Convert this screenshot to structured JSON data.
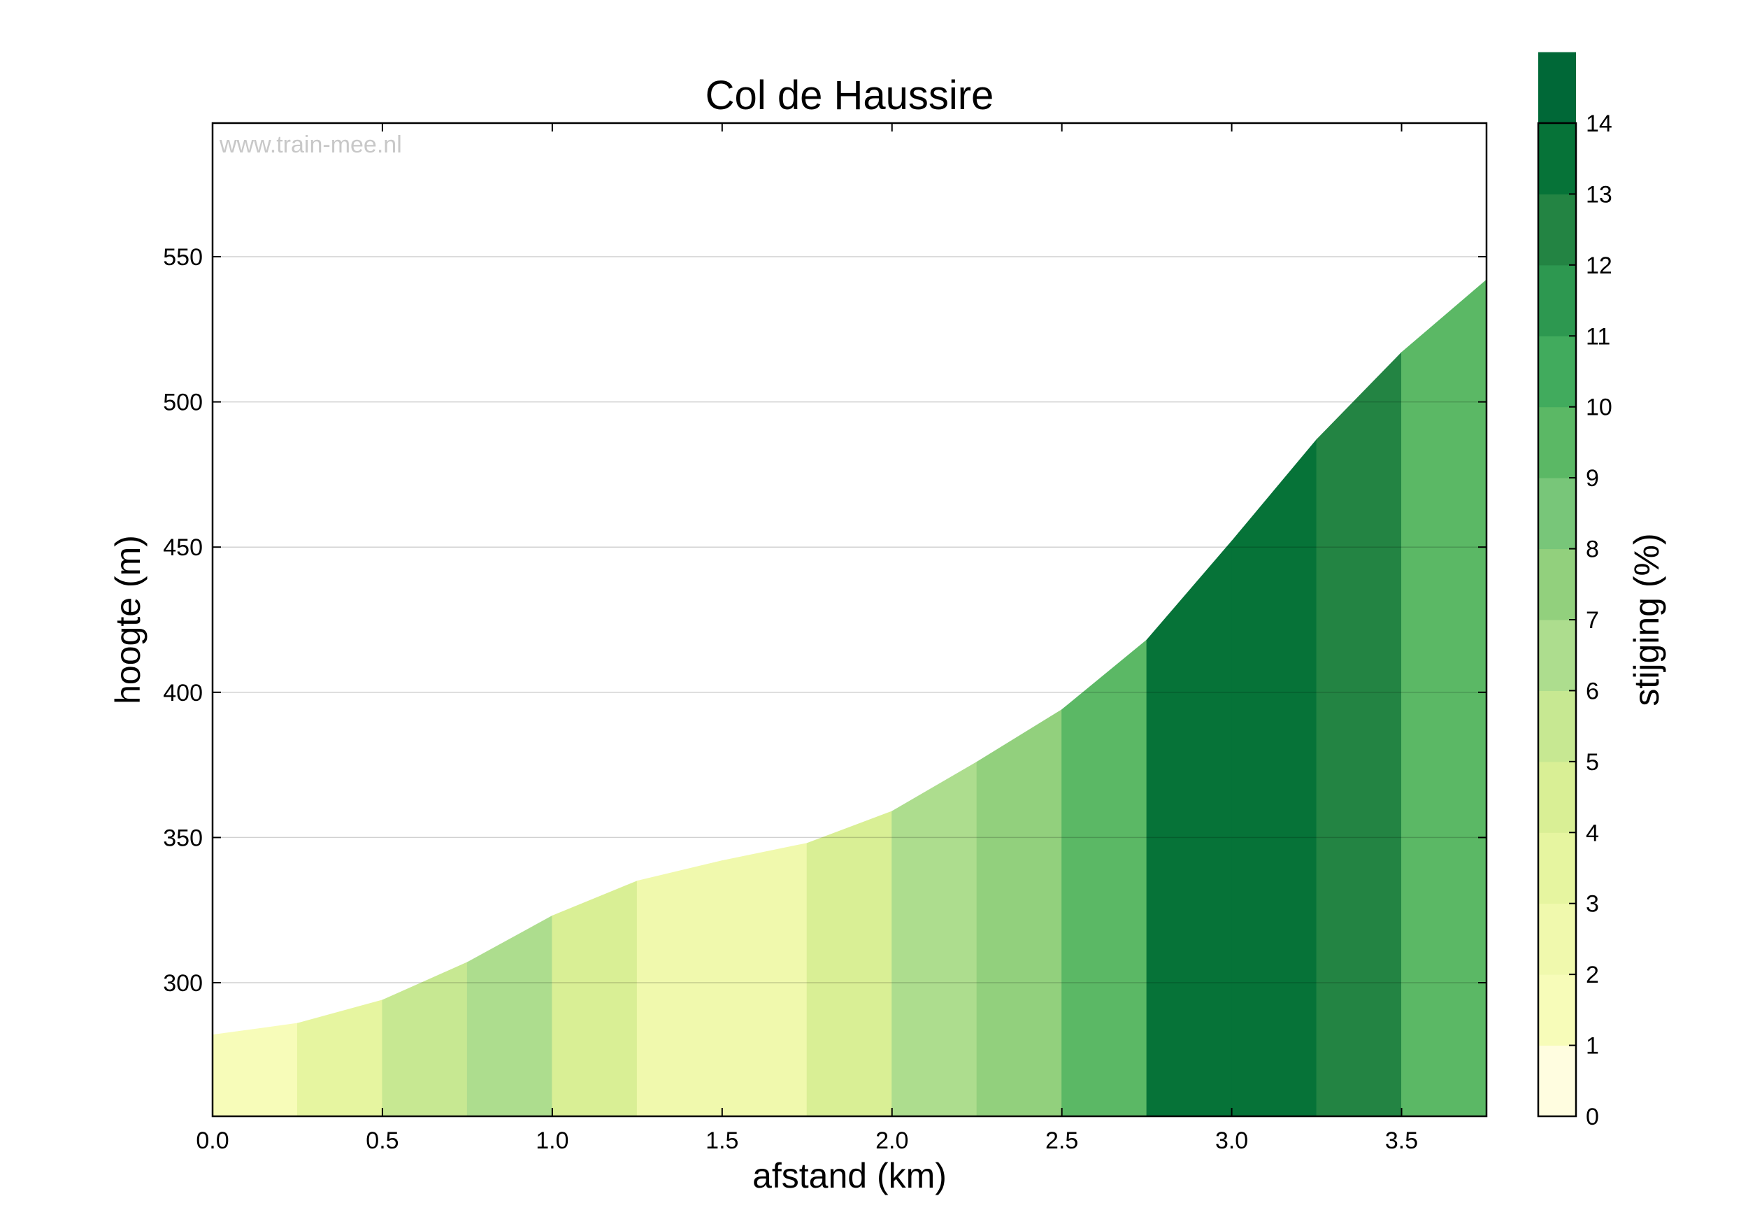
{
  "chart_data": {
    "type": "area",
    "title": "Col de Haussire",
    "xlabel": "afstand (km)",
    "ylabel": "hoogte (m)",
    "colorbar_label": "stijging (%)",
    "watermark": "www.train-mee.nl",
    "xlim": [
      0,
      3.75
    ],
    "ylim": [
      254,
      596
    ],
    "x_ticks": [
      "0.0",
      "0.5",
      "1.0",
      "1.5",
      "2.0",
      "2.5",
      "3.0",
      "3.5"
    ],
    "y_ticks": [
      "300",
      "350",
      "400",
      "450",
      "500",
      "550"
    ],
    "grid": true,
    "distance_km": [
      0,
      0.25,
      0.5,
      0.75,
      1.0,
      1.25,
      1.5,
      1.75,
      2.0,
      2.25,
      2.5,
      2.75,
      3.0,
      3.25,
      3.5,
      3.75
    ],
    "elevation_m": [
      282,
      286,
      294,
      307,
      323,
      335,
      342,
      348,
      359,
      376,
      394,
      418,
      452,
      487,
      517,
      542
    ],
    "gradient_pct": [
      1.5,
      3.5,
      5.5,
      6.5,
      4.5,
      2.5,
      2.5,
      4.5,
      6.5,
      7.5,
      9.5,
      13.5,
      13.5,
      12.5,
      9.5
    ],
    "colorbar": {
      "range": [
        0,
        14
      ],
      "ticks": [
        "0",
        "1",
        "2",
        "3",
        "4",
        "5",
        "6",
        "7",
        "8",
        "9",
        "10",
        "11",
        "12",
        "13",
        "14"
      ],
      "colors": [
        "#fffde0",
        "#f7fcb9",
        "#f0f9ad",
        "#e6f5a0",
        "#d9ef95",
        "#c7e892",
        "#addd8e",
        "#92d07d",
        "#78c679",
        "#5bb865",
        "#41ab5d",
        "#2d9850",
        "#238443",
        "#067338",
        "#006837"
      ]
    }
  }
}
